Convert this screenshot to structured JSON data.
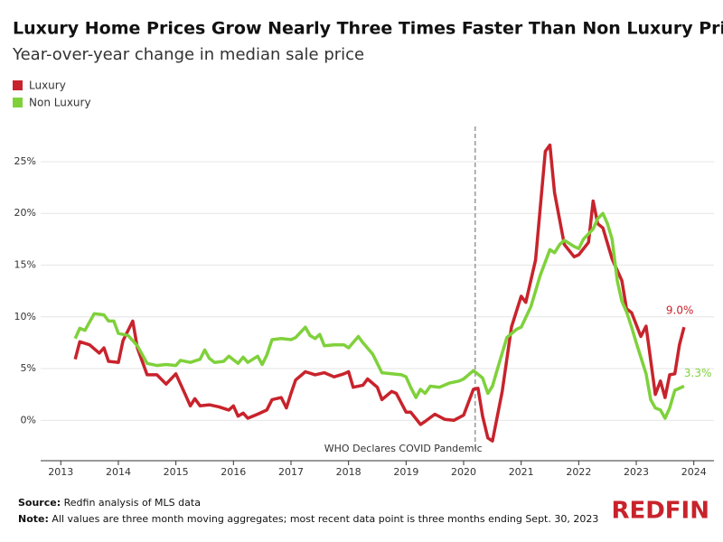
{
  "chart_data": {
    "type": "line",
    "title": "Luxury Home Prices Grow Nearly Three Times Faster Than Non Luxury Prices",
    "subtitle": "Year-over-year change in median sale price",
    "xlim": [
      2012.65,
      2024.35
    ],
    "xticks": [
      2013,
      2014,
      2015,
      2016,
      2017,
      2018,
      2019,
      2020,
      2021,
      2022,
      2023,
      2024
    ],
    "ylim": [
      -3.9,
      28.4
    ],
    "yticks": [
      {
        "value": 0,
        "label": "0%"
      },
      {
        "value": 5,
        "label": "5%"
      },
      {
        "value": 10,
        "label": "10%"
      },
      {
        "value": 15,
        "label": "15%"
      },
      {
        "value": 20,
        "label": "20%"
      },
      {
        "value": 25,
        "label": "25%"
      }
    ],
    "grid": true,
    "legend": "top-left",
    "annotation": {
      "x": 2020.2,
      "text": "WHO Declares COVID Pandemic"
    },
    "series": [
      {
        "name": "Luxury",
        "color": "#c8232c",
        "end_label": "9.0%",
        "x": [
          2013.25,
          2013.33,
          2013.5,
          2013.67,
          2013.75,
          2013.83,
          2014.0,
          2014.08,
          2014.25,
          2014.33,
          2014.5,
          2014.67,
          2014.83,
          2015.0,
          2015.17,
          2015.25,
          2015.33,
          2015.42,
          2015.58,
          2015.75,
          2015.92,
          2016.0,
          2016.08,
          2016.17,
          2016.25,
          2016.42,
          2016.58,
          2016.67,
          2016.83,
          2016.92,
          2017.0,
          2017.08,
          2017.25,
          2017.42,
          2017.58,
          2017.75,
          2017.92,
          2018.0,
          2018.08,
          2018.25,
          2018.33,
          2018.5,
          2018.58,
          2018.75,
          2018.83,
          2019.0,
          2019.08,
          2019.25,
          2019.33,
          2019.5,
          2019.67,
          2019.83,
          2020.0,
          2020.17,
          2020.25,
          2020.33,
          2020.42,
          2020.5,
          2020.67,
          2020.83,
          2021.0,
          2021.08,
          2021.25,
          2021.42,
          2021.5,
          2021.58,
          2021.75,
          2021.92,
          2022.0,
          2022.17,
          2022.25,
          2022.33,
          2022.42,
          2022.58,
          2022.75,
          2022.83,
          2022.92,
          2023.08,
          2023.17,
          2023.33,
          2023.42,
          2023.5,
          2023.58,
          2023.67,
          2023.75,
          2023.83
        ],
        "values": [
          5.9,
          7.6,
          7.3,
          6.5,
          7.0,
          5.7,
          5.6,
          7.7,
          9.6,
          7.0,
          4.4,
          4.4,
          3.5,
          4.5,
          2.4,
          1.4,
          2.1,
          1.4,
          1.5,
          1.3,
          1.0,
          1.4,
          0.4,
          0.7,
          0.2,
          0.6,
          1.0,
          2.0,
          2.2,
          1.2,
          2.6,
          3.9,
          4.7,
          4.4,
          4.6,
          4.2,
          4.5,
          4.7,
          3.2,
          3.4,
          4.0,
          3.2,
          2.0,
          2.8,
          2.6,
          0.8,
          0.8,
          -0.4,
          -0.1,
          0.6,
          0.1,
          0.0,
          0.5,
          3.0,
          3.1,
          0.4,
          -1.7,
          -2.0,
          2.8,
          9.0,
          12.0,
          11.4,
          15.5,
          26.0,
          26.6,
          22.0,
          17.0,
          15.8,
          16.0,
          17.2,
          21.2,
          19.0,
          18.6,
          15.6,
          13.5,
          10.8,
          10.4,
          8.1,
          9.1,
          2.5,
          3.8,
          2.2,
          4.4,
          4.5,
          7.3,
          9.0
        ]
      },
      {
        "name": "Non Luxury",
        "color": "#7fd13b",
        "end_label": "3.3%",
        "x": [
          2013.25,
          2013.33,
          2013.42,
          2013.58,
          2013.75,
          2013.83,
          2013.92,
          2014.0,
          2014.17,
          2014.33,
          2014.5,
          2014.67,
          2014.83,
          2015.0,
          2015.08,
          2015.25,
          2015.42,
          2015.5,
          2015.58,
          2015.67,
          2015.83,
          2015.92,
          2016.08,
          2016.17,
          2016.25,
          2016.42,
          2016.5,
          2016.58,
          2016.67,
          2016.83,
          2017.0,
          2017.08,
          2017.25,
          2017.33,
          2017.42,
          2017.5,
          2017.58,
          2017.75,
          2017.92,
          2018.0,
          2018.17,
          2018.25,
          2018.42,
          2018.58,
          2018.75,
          2018.92,
          2019.0,
          2019.08,
          2019.17,
          2019.25,
          2019.33,
          2019.42,
          2019.58,
          2019.75,
          2019.92,
          2020.0,
          2020.17,
          2020.33,
          2020.42,
          2020.5,
          2020.58,
          2020.75,
          2020.92,
          2021.0,
          2021.17,
          2021.33,
          2021.5,
          2021.58,
          2021.67,
          2021.75,
          2021.92,
          2022.0,
          2022.08,
          2022.25,
          2022.33,
          2022.42,
          2022.5,
          2022.58,
          2022.67,
          2022.75,
          2022.83,
          2022.92,
          2023.0,
          2023.17,
          2023.25,
          2023.33,
          2023.42,
          2023.5,
          2023.58,
          2023.67,
          2023.83
        ],
        "values": [
          7.9,
          8.9,
          8.7,
          10.3,
          10.2,
          9.6,
          9.6,
          8.4,
          8.2,
          7.2,
          5.5,
          5.3,
          5.4,
          5.3,
          5.8,
          5.6,
          5.9,
          6.8,
          6.0,
          5.6,
          5.7,
          6.2,
          5.5,
          6.1,
          5.6,
          6.2,
          5.4,
          6.3,
          7.8,
          7.9,
          7.8,
          8.0,
          9.0,
          8.2,
          7.9,
          8.3,
          7.2,
          7.3,
          7.3,
          7.0,
          8.1,
          7.5,
          6.4,
          4.6,
          4.5,
          4.4,
          4.2,
          3.2,
          2.2,
          3.0,
          2.6,
          3.3,
          3.2,
          3.6,
          3.8,
          4.0,
          4.8,
          4.1,
          2.6,
          3.3,
          4.8,
          8.0,
          8.8,
          9.0,
          11.0,
          14.0,
          16.5,
          16.2,
          17.0,
          17.4,
          16.8,
          16.6,
          17.5,
          18.5,
          19.5,
          20.0,
          19.0,
          17.5,
          13.5,
          11.5,
          10.5,
          9.0,
          7.5,
          4.5,
          2.0,
          1.2,
          1.0,
          0.2,
          1.2,
          2.9,
          3.3
        ]
      }
    ],
    "source_label": "Source:",
    "source": "Redfin analysis of MLS data",
    "note_label": "Note:",
    "note": "All values are three month moving aggregates; most recent data point is three months ending Sept. 30, 2023",
    "logo": "REDFIN"
  }
}
